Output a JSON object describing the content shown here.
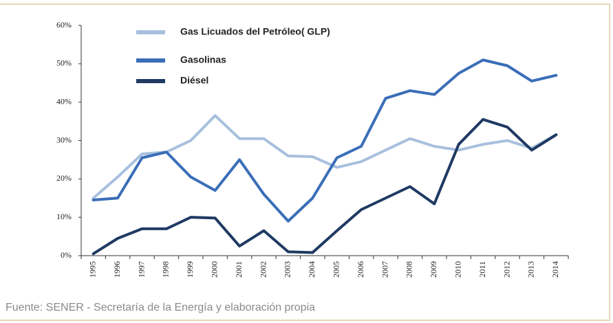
{
  "chart_data": {
    "type": "line",
    "source": "Fuente: SENER - Secretaría de la Energía y elaboración propia",
    "categories": [
      "1995",
      "1996",
      "1997",
      "1998",
      "1999",
      "2000",
      "2001",
      "2002",
      "2003",
      "2004",
      "2005",
      "2006",
      "2007",
      "2008",
      "2009",
      "2010",
      "2011",
      "2012",
      "2013",
      "2014"
    ],
    "series": [
      {
        "name": "Gas Licuados del Petróleo( GLP)",
        "color": "#a8c0de",
        "values": [
          15,
          20.5,
          26.5,
          27,
          30,
          36.5,
          30.5,
          30.5,
          26,
          25.8,
          23,
          24.5,
          27.5,
          30.5,
          28.5,
          27.5,
          29,
          30,
          28,
          31.5
        ]
      },
      {
        "name": "Gasolinas",
        "color": "#3a6eb8",
        "values": [
          14.5,
          15,
          25.5,
          27,
          20.5,
          17,
          25,
          16,
          9,
          15,
          25.5,
          28.5,
          41,
          43,
          42,
          47.5,
          51,
          49.5,
          45.5,
          47
        ]
      },
      {
        "name": "Diésel",
        "color": "#1f3a63",
        "values": [
          0.5,
          4.5,
          7,
          7,
          10,
          9.8,
          2.5,
          6.5,
          1,
          0.8,
          6.5,
          12,
          15,
          18,
          13.5,
          29,
          35.5,
          33.5,
          27.5,
          31.5
        ]
      }
    ],
    "ylim": [
      0,
      60
    ],
    "yticks": [
      {
        "value": 0,
        "label": "0%"
      },
      {
        "value": 10,
        "label": "10%"
      },
      {
        "value": 20,
        "label": "20%"
      },
      {
        "value": 30,
        "label": "30%"
      },
      {
        "value": 40,
        "label": "40%"
      },
      {
        "value": 50,
        "label": "50%"
      },
      {
        "value": 60,
        "label": "60%"
      }
    ],
    "grid": false
  }
}
